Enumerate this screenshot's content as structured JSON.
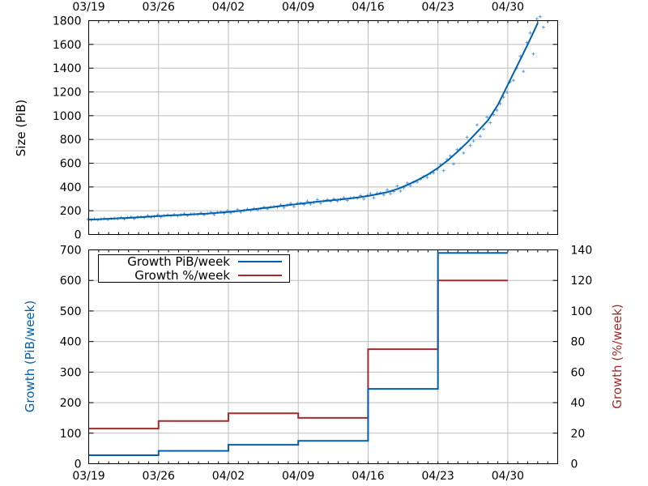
{
  "colors": {
    "size": "#0060ad",
    "size_points": "#5d9be0",
    "growth_pib": "#0060ad",
    "growth_pct": "#a52a2a"
  },
  "chart_data": [
    {
      "type": "line",
      "ylabel": "Size (PiB)",
      "xlabel": "",
      "x_ticks": [
        "03/19",
        "03/26",
        "04/02",
        "04/09",
        "04/16",
        "04/23",
        "04/30"
      ],
      "x_tick_position": "top",
      "xlim": [
        "03/19",
        "05/05"
      ],
      "ylim": [
        0,
        1800
      ],
      "y_ticks": [
        0,
        200,
        400,
        600,
        800,
        1000,
        1200,
        1400,
        1600,
        1800
      ],
      "grid": true,
      "series": [
        {
          "x": [
            "03/19",
            "03/20",
            "03/21",
            "03/22",
            "03/23",
            "03/24",
            "03/25",
            "03/26",
            "03/27",
            "03/28",
            "03/29",
            "03/30",
            "03/31",
            "04/01",
            "04/02",
            "04/03",
            "04/04",
            "04/05",
            "04/06",
            "04/07",
            "04/08",
            "04/09",
            "04/10",
            "04/11",
            "04/12",
            "04/13",
            "04/14",
            "04/15",
            "04/16",
            "04/17",
            "04/18",
            "04/19",
            "04/20",
            "04/21",
            "04/22",
            "04/23",
            "04/24",
            "04/25",
            "04/26",
            "04/27",
            "04/28",
            "04/29",
            "04/30",
            "05/01",
            "05/02",
            "05/03"
          ],
          "values": [
            125,
            128,
            132,
            136,
            140,
            145,
            150,
            155,
            160,
            164,
            168,
            172,
            176,
            183,
            190,
            198,
            207,
            217,
            227,
            237,
            247,
            257,
            267,
            277,
            285,
            293,
            302,
            312,
            325,
            340,
            358,
            385,
            420,
            460,
            505,
            560,
            625,
            700,
            780,
            870,
            960,
            1090,
            1260,
            1430,
            1600,
            1780
          ]
        }
      ]
    },
    {
      "type": "line",
      "step": true,
      "xlabel": "",
      "ylabel": "Growth (PiB/week)",
      "y2label": "Growth (%/week)",
      "x_ticks": [
        "03/19",
        "03/26",
        "04/02",
        "04/09",
        "04/16",
        "04/23",
        "04/30"
      ],
      "xlim": [
        "03/19",
        "05/05"
      ],
      "ylim": [
        0,
        700
      ],
      "y_ticks": [
        0,
        100,
        200,
        300,
        400,
        500,
        600,
        700
      ],
      "y2lim": [
        0,
        140
      ],
      "y2_ticks": [
        0,
        20,
        40,
        60,
        80,
        100,
        120,
        140
      ],
      "legend": "top-left",
      "grid": true,
      "week_starts": [
        "03/19",
        "03/26",
        "04/02",
        "04/09",
        "04/16",
        "04/23",
        "04/30"
      ],
      "series": [
        {
          "name": "Growth PiB/week",
          "axis": "left",
          "values": [
            28,
            42,
            62,
            75,
            245,
            690
          ]
        },
        {
          "name": "Growth %/week",
          "axis": "right",
          "values": [
            23,
            28,
            33,
            30,
            75,
            120
          ]
        }
      ]
    }
  ]
}
